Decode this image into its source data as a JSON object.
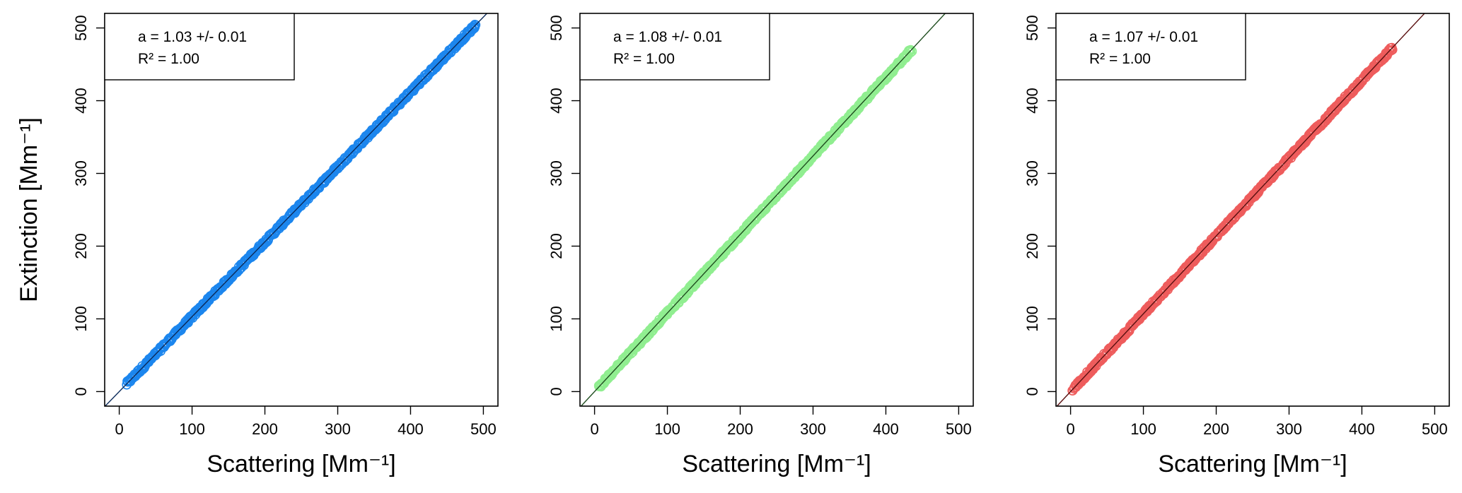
{
  "figure": {
    "ylabel": "Extinction [Mm⁻¹]"
  },
  "chart_data": [
    {
      "type": "scatter",
      "xlabel": "Scattering [Mm⁻¹]",
      "ylabel": "Extinction [Mm⁻¹]",
      "xlim": [
        -20,
        520
      ],
      "ylim": [
        -20,
        520
      ],
      "xticks": [
        "0",
        "100",
        "200",
        "300",
        "400",
        "500"
      ],
      "yticks": [
        "0",
        "100",
        "200",
        "300",
        "400",
        "500"
      ],
      "color": "#1c86ee",
      "line_color": "#0b2a5a",
      "annotation": {
        "slope_text": "a =  1.03  +/- 0.01",
        "r2_text": "R² = 1.00"
      },
      "fit": {
        "slope": 1.03,
        "intercept": 0
      },
      "x_range": [
        10,
        490
      ],
      "series": [
        {
          "x": [
            10,
            50,
            100,
            150,
            200,
            250,
            300,
            350,
            400,
            450,
            490
          ],
          "y": [
            10.3,
            51.5,
            103,
            154.5,
            206,
            257.5,
            309,
            360.5,
            412,
            463.5,
            498
          ]
        }
      ],
      "grid": false
    },
    {
      "type": "scatter",
      "xlabel": "Scattering [Mm⁻¹]",
      "ylabel": "",
      "xlim": [
        -20,
        520
      ],
      "ylim": [
        -20,
        520
      ],
      "xticks": [
        "0",
        "100",
        "200",
        "300",
        "400",
        "500"
      ],
      "yticks": [
        "0",
        "100",
        "200",
        "300",
        "400",
        "500"
      ],
      "color": "#90ee90",
      "line_color": "#1f4d1f",
      "annotation": {
        "slope_text": "a =  1.08  +/- 0.01",
        "r2_text": "R² = 1.00"
      },
      "fit": {
        "slope": 1.08,
        "intercept": 0
      },
      "x_range": [
        5,
        435
      ],
      "series": [
        {
          "x": [
            5,
            50,
            100,
            150,
            200,
            250,
            300,
            350,
            400,
            435
          ],
          "y": [
            5.4,
            54,
            108,
            162,
            216,
            270,
            324,
            378,
            432,
            470
          ]
        }
      ],
      "grid": false
    },
    {
      "type": "scatter",
      "xlabel": "Scattering [Mm⁻¹]",
      "ylabel": "",
      "xlim": [
        -20,
        520
      ],
      "ylim": [
        -20,
        520
      ],
      "xticks": [
        "0",
        "100",
        "200",
        "300",
        "400",
        "500"
      ],
      "yticks": [
        "0",
        "100",
        "200",
        "300",
        "400",
        "500"
      ],
      "color": "#ee5c5c",
      "line_color": "#5a1010",
      "annotation": {
        "slope_text": "a =  1.07  +/- 0.01",
        "r2_text": "R² = 1.00"
      },
      "fit": {
        "slope": 1.07,
        "intercept": 0
      },
      "x_range": [
        3,
        442
      ],
      "series": [
        {
          "x": [
            3,
            50,
            100,
            150,
            200,
            250,
            300,
            350,
            400,
            442
          ],
          "y": [
            3.2,
            53.5,
            107,
            160.5,
            214,
            267.5,
            321,
            374.5,
            428,
            472
          ]
        }
      ],
      "grid": false
    }
  ]
}
